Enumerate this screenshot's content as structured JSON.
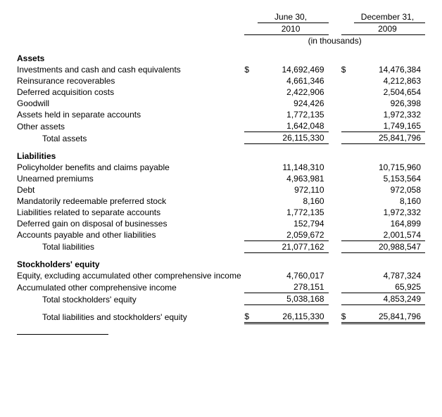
{
  "headers": {
    "col1_top": "June 30,",
    "col1_year": "2010",
    "col2_top": "December 31,",
    "col2_year": "2009",
    "units": "(in thousands)"
  },
  "currency": "$",
  "sections": {
    "assets": {
      "title": "Assets",
      "rows": {
        "investments": {
          "label": "Investments and cash and cash equivalents",
          "v1": "14,692,469",
          "v2": "14,476,384"
        },
        "reinsurance": {
          "label": "Reinsurance recoverables",
          "v1": "4,661,346",
          "v2": "4,212,863"
        },
        "dac": {
          "label": "Deferred acquisition costs",
          "v1": "2,422,906",
          "v2": "2,504,654"
        },
        "goodwill": {
          "label": "Goodwill",
          "v1": "924,426",
          "v2": "926,398"
        },
        "separate": {
          "label": "Assets held in separate accounts",
          "v1": "1,772,135",
          "v2": "1,972,332"
        },
        "other": {
          "label": "Other assets",
          "v1": "1,642,048",
          "v2": "1,749,165"
        },
        "total": {
          "label": "Total assets",
          "v1": "26,115,330",
          "v2": "25,841,796"
        }
      }
    },
    "liabilities": {
      "title": "Liabilities",
      "rows": {
        "policyholder": {
          "label": "Policyholder benefits and claims payable",
          "v1": "11,148,310",
          "v2": "10,715,960"
        },
        "unearned": {
          "label": "Unearned premiums",
          "v1": "4,963,981",
          "v2": "5,153,564"
        },
        "debt": {
          "label": "Debt",
          "v1": "972,110",
          "v2": "972,058"
        },
        "preferred": {
          "label": "Mandatorily redeemable preferred stock",
          "v1": "8,160",
          "v2": "8,160"
        },
        "sep_liab": {
          "label": "Liabilities related to separate accounts",
          "v1": "1,772,135",
          "v2": "1,972,332"
        },
        "def_gain": {
          "label": "Deferred gain on disposal of businesses",
          "v1": "152,794",
          "v2": "164,899"
        },
        "ap_other": {
          "label": "Accounts payable and other liabilities",
          "v1": "2,059,672",
          "v2": "2,001,574"
        },
        "total": {
          "label": "Total liabilities",
          "v1": "21,077,162",
          "v2": "20,988,547"
        }
      }
    },
    "equity": {
      "title": "Stockholders' equity",
      "rows": {
        "equity_ex": {
          "label": "Equity, excluding accumulated other comprehensive income",
          "v1": "4,760,017",
          "v2": "4,787,324"
        },
        "aoci": {
          "label": "Accumulated other comprehensive income",
          "v1": "278,151",
          "v2": "65,925"
        },
        "total_se": {
          "label": "Total stockholders' equity",
          "v1": "5,038,168",
          "v2": "4,853,249"
        },
        "total_liab_se": {
          "label": "Total liabilities and stockholders' equity",
          "v1": "26,115,330",
          "v2": "25,841,796"
        }
      }
    }
  }
}
